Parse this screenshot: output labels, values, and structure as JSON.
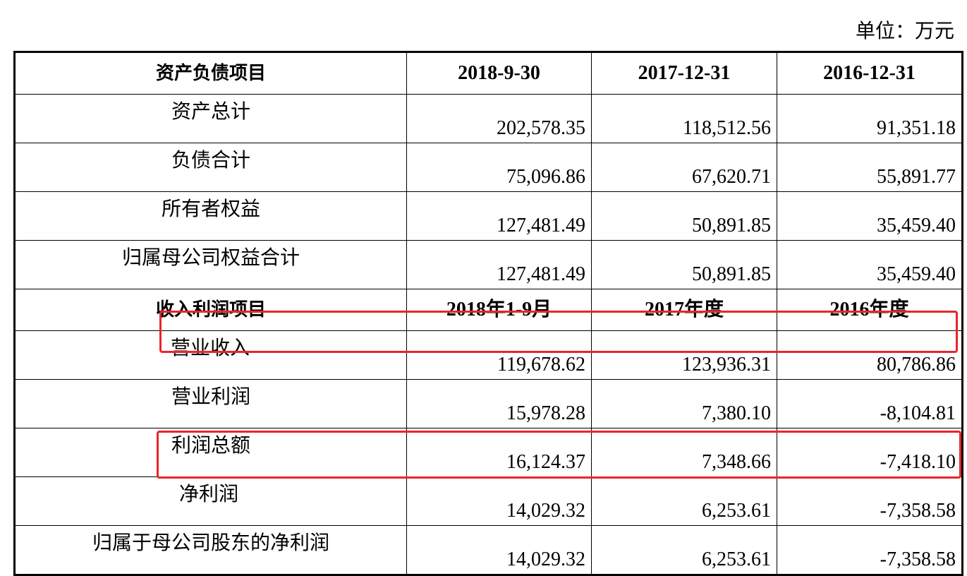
{
  "unit_label": "单位：万元",
  "balance_header": [
    "资产负债项目",
    "2018-9-30",
    "2017-12-31",
    "2016-12-31"
  ],
  "balance_rows": [
    {
      "item": "资产总计",
      "v1": "202,578.35",
      "v2": "118,512.56",
      "v3": "91,351.18"
    },
    {
      "item": "负债合计",
      "v1": "75,096.86",
      "v2": "67,620.71",
      "v3": "55,891.77"
    },
    {
      "item": "所有者权益",
      "v1": "127,481.49",
      "v2": "50,891.85",
      "v3": "35,459.40"
    },
    {
      "item": "归属母公司权益合计",
      "v1": "127,481.49",
      "v2": "50,891.85",
      "v3": "35,459.40"
    }
  ],
  "income_header": [
    "收入利润项目",
    "2018年1-9月",
    "2017年度",
    "2016年度"
  ],
  "income_rows": [
    {
      "item": "营业收入",
      "v1": "119,678.62",
      "v2": "123,936.31",
      "v3": "80,786.86"
    },
    {
      "item": "营业利润",
      "v1": "15,978.28",
      "v2": "7,380.10",
      "v3": "-8,104.81"
    },
    {
      "item": "利润总额",
      "v1": "16,124.37",
      "v2": "7,348.66",
      "v3": "-7,418.10"
    },
    {
      "item": "净利润",
      "v1": "14,029.32",
      "v2": "6,253.61",
      "v3": "-7,358.58"
    },
    {
      "item": "归属于母公司股东的净利润",
      "v1": "14,029.32",
      "v2": "6,253.61",
      "v3": "-7,358.58"
    }
  ],
  "highlight_color": "#e8262a"
}
